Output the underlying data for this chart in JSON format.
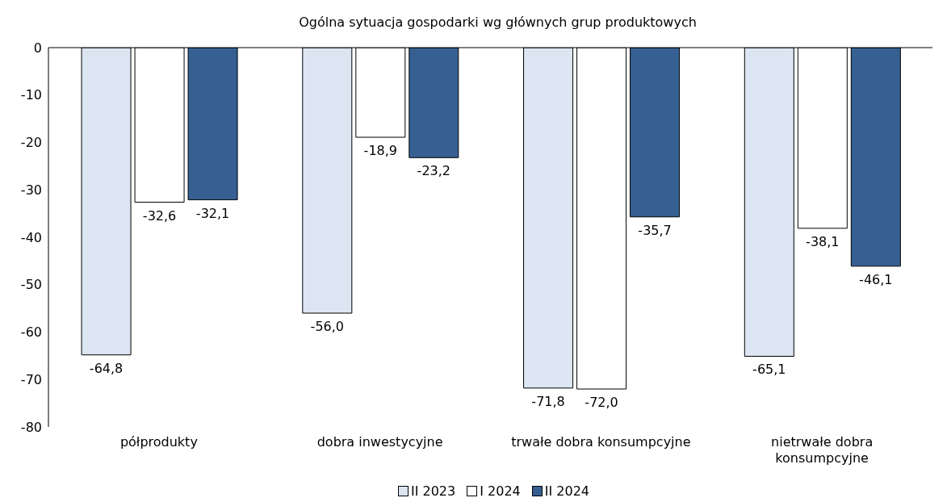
{
  "chart_data": {
    "type": "bar",
    "title": "Ogólna sytuacja gospodarki wg głównych grup produktowych",
    "categories": [
      "półprodukty",
      "dobra inwestycyjne",
      "trwałe dobra konsumpcyjne",
      "nietrwałe dobra konsumpcyjne"
    ],
    "series": [
      {
        "name": "II 2023",
        "color": "#dce6f2",
        "values": [
          -64.8,
          -56.0,
          -71.8,
          -65.1
        ],
        "value_labels": [
          "-64,8",
          "-56,0",
          "-71,8",
          "-65,1"
        ]
      },
      {
        "name": "I 2024",
        "color": "#ffffff",
        "values": [
          -32.6,
          -18.9,
          -72.0,
          -38.1
        ],
        "value_labels": [
          "-32,6",
          "-18,9",
          "-72,0",
          "-38,1"
        ]
      },
      {
        "name": "II 2024",
        "color": "#366092",
        "values": [
          -32.1,
          -23.2,
          -35.7,
          -46.1
        ],
        "value_labels": [
          "-32,1",
          "-23,2",
          "-35,7",
          "-46,1"
        ]
      }
    ],
    "ylim": [
      -80,
      0
    ],
    "yticks": [
      0,
      -10,
      -20,
      -30,
      -40,
      -50,
      -60,
      -70,
      -80
    ],
    "legend": "bottom"
  }
}
